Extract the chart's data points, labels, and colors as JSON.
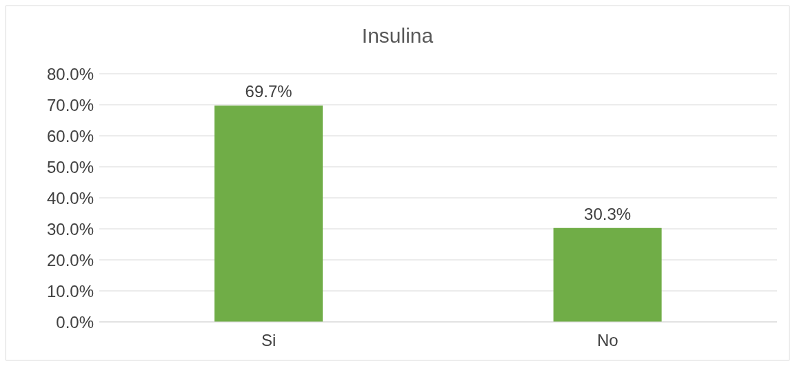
{
  "chart_data": {
    "type": "bar",
    "title": "Insulina",
    "categories": [
      "Si",
      "No"
    ],
    "values": [
      69.7,
      30.3
    ],
    "value_labels": [
      "69.7%",
      "30.3%"
    ],
    "color": "#70ad47",
    "ylim": [
      0,
      80
    ],
    "yticks": [
      {
        "value": 0,
        "label": "0.0%"
      },
      {
        "value": 10,
        "label": "10.0%"
      },
      {
        "value": 20,
        "label": "20.0%"
      },
      {
        "value": 30,
        "label": "30.0%"
      },
      {
        "value": 40,
        "label": "40.0%"
      },
      {
        "value": 50,
        "label": "50.0%"
      },
      {
        "value": 60,
        "label": "60.0%"
      },
      {
        "value": 70,
        "label": "70.0%"
      },
      {
        "value": 80,
        "label": "80.0%"
      }
    ],
    "grid": "y"
  }
}
